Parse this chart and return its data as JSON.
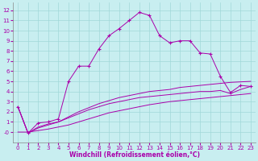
{
  "xlabel": "Windchill (Refroidissement éolien,°C)",
  "background_color": "#c8eef0",
  "line_color": "#aa00aa",
  "grid_color": "#a0d8d8",
  "xlim": [
    -0.5,
    23.5
  ],
  "ylim": [
    -1.0,
    12.8
  ],
  "xticks": [
    0,
    1,
    2,
    3,
    4,
    5,
    6,
    7,
    8,
    9,
    10,
    11,
    12,
    13,
    14,
    15,
    16,
    17,
    18,
    19,
    20,
    21,
    22,
    23
  ],
  "yticks": [
    0,
    1,
    2,
    3,
    4,
    5,
    6,
    7,
    8,
    9,
    10,
    11,
    12
  ],
  "ytick_labels": [
    "-0",
    "1",
    "2",
    "3",
    "4",
    "5",
    "6",
    "7",
    "8",
    "9",
    "10",
    "11",
    "12"
  ],
  "main_x": [
    0,
    1,
    2,
    3,
    4,
    5,
    6,
    7,
    8,
    9,
    10,
    11,
    12,
    13,
    14,
    15,
    16,
    17,
    18,
    19,
    20,
    21,
    22,
    23
  ],
  "main_y": [
    2.5,
    -0.1,
    0.9,
    1.0,
    1.3,
    5.0,
    6.5,
    6.5,
    8.2,
    9.5,
    10.2,
    11.0,
    11.8,
    11.5,
    9.5,
    8.8,
    9.0,
    9.0,
    7.8,
    7.7,
    5.5,
    3.9,
    4.6,
    4.5
  ],
  "curve1_x": [
    0,
    1,
    2,
    3,
    4,
    5,
    6,
    7,
    8,
    9,
    10,
    11,
    12,
    13,
    14,
    15,
    16,
    17,
    18,
    19,
    20,
    21,
    22,
    23
  ],
  "curve1_y": [
    2.5,
    -0.1,
    0.5,
    0.8,
    1.0,
    1.5,
    2.0,
    2.4,
    2.8,
    3.1,
    3.4,
    3.6,
    3.8,
    4.0,
    4.1,
    4.2,
    4.4,
    4.5,
    4.6,
    4.7,
    4.8,
    4.9,
    4.95,
    5.0
  ],
  "curve2_x": [
    0,
    1,
    2,
    3,
    4,
    5,
    6,
    7,
    8,
    9,
    10,
    11,
    12,
    13,
    14,
    15,
    16,
    17,
    18,
    19,
    20,
    21,
    22,
    23
  ],
  "curve2_y": [
    2.5,
    -0.1,
    0.4,
    0.7,
    1.0,
    1.4,
    1.8,
    2.2,
    2.5,
    2.8,
    3.0,
    3.2,
    3.4,
    3.5,
    3.6,
    3.7,
    3.8,
    3.9,
    4.0,
    4.0,
    4.1,
    3.8,
    4.2,
    4.5
  ],
  "curve3_x": [
    0,
    1,
    2,
    3,
    4,
    5,
    6,
    7,
    8,
    9,
    10,
    11,
    12,
    13,
    14,
    15,
    16,
    17,
    18,
    19,
    20,
    21,
    22,
    23
  ],
  "curve3_y": [
    0.0,
    0.0,
    0.15,
    0.3,
    0.5,
    0.7,
    1.0,
    1.3,
    1.6,
    1.9,
    2.1,
    2.3,
    2.5,
    2.7,
    2.85,
    3.0,
    3.1,
    3.2,
    3.3,
    3.4,
    3.5,
    3.6,
    3.7,
    3.8
  ]
}
